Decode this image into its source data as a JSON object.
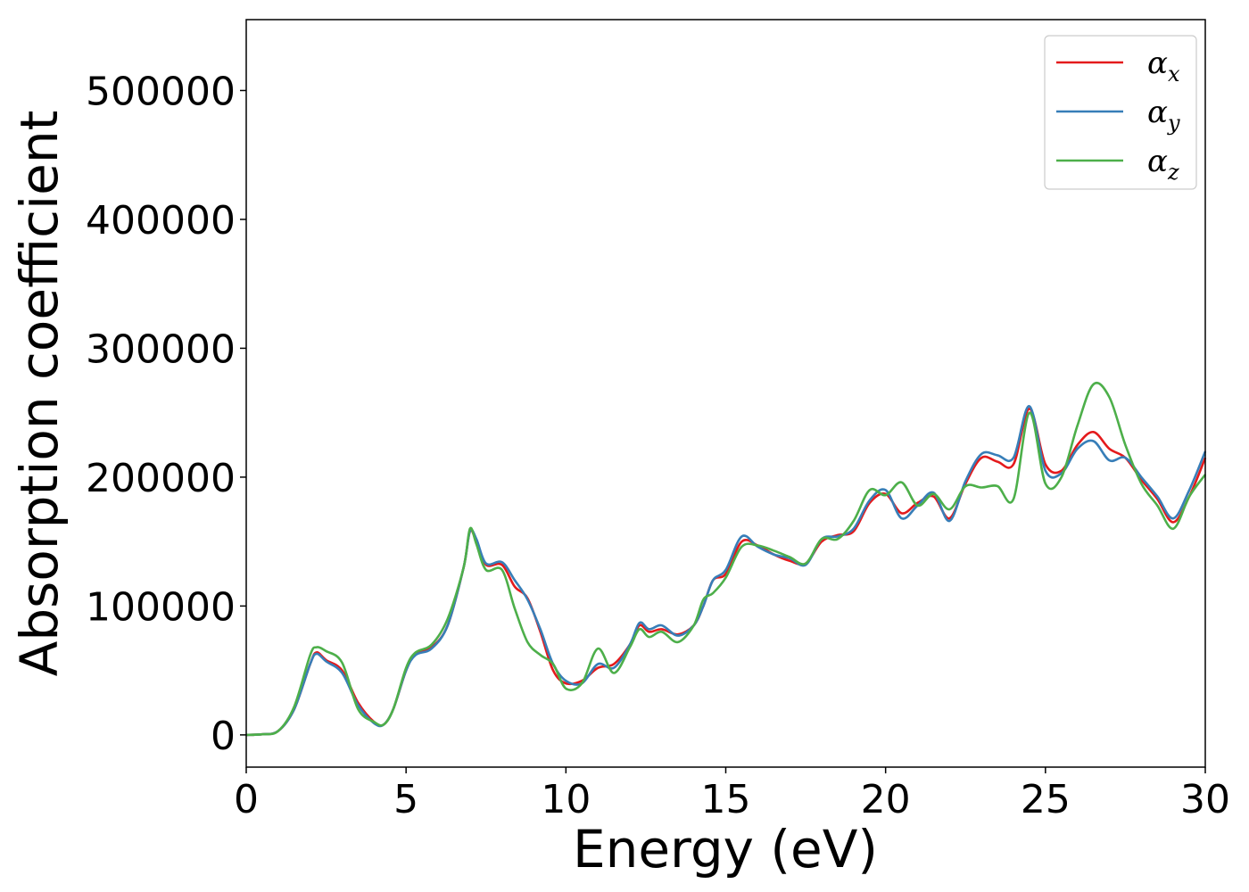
{
  "chart_data": {
    "type": "line",
    "xlabel": "Energy (eV)",
    "ylabel": "Absorption coefficient",
    "xlim": [
      0,
      30
    ],
    "ylim": [
      -25000,
      555000
    ],
    "xticks": [
      0,
      5,
      10,
      15,
      20,
      25,
      30
    ],
    "yticks": [
      0,
      100000,
      200000,
      300000,
      400000,
      500000
    ],
    "grid": false,
    "legend_position": "top-right",
    "series": [
      {
        "name": "α",
        "subscript": "x",
        "color": "#e41a1c",
        "points": [
          [
            0,
            0
          ],
          [
            0.5,
            500
          ],
          [
            1,
            3000
          ],
          [
            1.5,
            20000
          ],
          [
            2,
            55000
          ],
          [
            2.2,
            64000
          ],
          [
            2.5,
            58000
          ],
          [
            3,
            50000
          ],
          [
            3.5,
            25000
          ],
          [
            4,
            10000
          ],
          [
            4.3,
            8000
          ],
          [
            4.6,
            20000
          ],
          [
            5,
            50000
          ],
          [
            5.3,
            63000
          ],
          [
            5.8,
            68000
          ],
          [
            6.3,
            85000
          ],
          [
            6.8,
            130000
          ],
          [
            7,
            158000
          ],
          [
            7.2,
            150000
          ],
          [
            7.5,
            132000
          ],
          [
            8,
            132000
          ],
          [
            8.4,
            115000
          ],
          [
            8.8,
            106000
          ],
          [
            9.2,
            80000
          ],
          [
            9.6,
            50000
          ],
          [
            10,
            40000
          ],
          [
            10.5,
            42000
          ],
          [
            11,
            52000
          ],
          [
            11.5,
            55000
          ],
          [
            12,
            70000
          ],
          [
            12.3,
            85000
          ],
          [
            12.6,
            80000
          ],
          [
            13,
            82000
          ],
          [
            13.5,
            78000
          ],
          [
            14,
            85000
          ],
          [
            14.3,
            100000
          ],
          [
            14.6,
            120000
          ],
          [
            15,
            125000
          ],
          [
            15.5,
            150000
          ],
          [
            16,
            147000
          ],
          [
            16.5,
            140000
          ],
          [
            17,
            135000
          ],
          [
            17.5,
            133000
          ],
          [
            18,
            150000
          ],
          [
            18.5,
            155000
          ],
          [
            19,
            158000
          ],
          [
            19.5,
            180000
          ],
          [
            20,
            187000
          ],
          [
            20.5,
            172000
          ],
          [
            21,
            180000
          ],
          [
            21.5,
            185000
          ],
          [
            22,
            168000
          ],
          [
            22.5,
            195000
          ],
          [
            23,
            215000
          ],
          [
            23.5,
            212000
          ],
          [
            24,
            210000
          ],
          [
            24.5,
            253000
          ],
          [
            25,
            210000
          ],
          [
            25.5,
            205000
          ],
          [
            26,
            225000
          ],
          [
            26.5,
            235000
          ],
          [
            27,
            222000
          ],
          [
            27.5,
            215000
          ],
          [
            28,
            198000
          ],
          [
            28.5,
            183000
          ],
          [
            29,
            165000
          ],
          [
            29.5,
            185000
          ],
          [
            30,
            215000
          ]
        ]
      },
      {
        "name": "α",
        "subscript": "y",
        "color": "#377eb8",
        "points": [
          [
            0,
            0
          ],
          [
            0.5,
            500
          ],
          [
            1,
            3000
          ],
          [
            1.5,
            20000
          ],
          [
            2,
            55000
          ],
          [
            2.2,
            63000
          ],
          [
            2.5,
            57000
          ],
          [
            3,
            48000
          ],
          [
            3.5,
            23000
          ],
          [
            4,
            9000
          ],
          [
            4.3,
            8000
          ],
          [
            4.6,
            20000
          ],
          [
            5,
            50000
          ],
          [
            5.3,
            62000
          ],
          [
            5.8,
            67000
          ],
          [
            6.3,
            85000
          ],
          [
            6.8,
            130000
          ],
          [
            7,
            158000
          ],
          [
            7.2,
            152000
          ],
          [
            7.5,
            133000
          ],
          [
            8,
            134000
          ],
          [
            8.4,
            120000
          ],
          [
            8.8,
            105000
          ],
          [
            9.2,
            82000
          ],
          [
            9.6,
            55000
          ],
          [
            10,
            42000
          ],
          [
            10.5,
            40000
          ],
          [
            11,
            55000
          ],
          [
            11.5,
            52000
          ],
          [
            12,
            70000
          ],
          [
            12.3,
            87000
          ],
          [
            12.6,
            82000
          ],
          [
            13,
            85000
          ],
          [
            13.5,
            77000
          ],
          [
            14,
            85000
          ],
          [
            14.3,
            100000
          ],
          [
            14.6,
            120000
          ],
          [
            15,
            128000
          ],
          [
            15.5,
            154000
          ],
          [
            16,
            146000
          ],
          [
            16.5,
            140000
          ],
          [
            17,
            137000
          ],
          [
            17.5,
            132000
          ],
          [
            18,
            152000
          ],
          [
            18.5,
            154000
          ],
          [
            19,
            160000
          ],
          [
            19.5,
            182000
          ],
          [
            20,
            190000
          ],
          [
            20.5,
            168000
          ],
          [
            21,
            178000
          ],
          [
            21.5,
            188000
          ],
          [
            22,
            166000
          ],
          [
            22.5,
            197000
          ],
          [
            23,
            218000
          ],
          [
            23.5,
            217000
          ],
          [
            24,
            215000
          ],
          [
            24.5,
            255000
          ],
          [
            25,
            205000
          ],
          [
            25.5,
            203000
          ],
          [
            26,
            222000
          ],
          [
            26.5,
            228000
          ],
          [
            27,
            213000
          ],
          [
            27.5,
            215000
          ],
          [
            28,
            200000
          ],
          [
            28.5,
            185000
          ],
          [
            29,
            168000
          ],
          [
            29.5,
            190000
          ],
          [
            30,
            220000
          ]
        ]
      },
      {
        "name": "α",
        "subscript": "z",
        "color": "#4daf4a",
        "points": [
          [
            0,
            0
          ],
          [
            0.5,
            500
          ],
          [
            1,
            3000
          ],
          [
            1.5,
            22000
          ],
          [
            2,
            62000
          ],
          [
            2.2,
            68000
          ],
          [
            2.5,
            65000
          ],
          [
            3,
            56000
          ],
          [
            3.5,
            20000
          ],
          [
            4,
            10000
          ],
          [
            4.3,
            8000
          ],
          [
            4.6,
            20000
          ],
          [
            5,
            52000
          ],
          [
            5.3,
            64000
          ],
          [
            5.8,
            70000
          ],
          [
            6.3,
            90000
          ],
          [
            6.8,
            130000
          ],
          [
            7,
            160000
          ],
          [
            7.2,
            148000
          ],
          [
            7.5,
            128000
          ],
          [
            8,
            128000
          ],
          [
            8.4,
            98000
          ],
          [
            8.8,
            72000
          ],
          [
            9.2,
            62000
          ],
          [
            9.6,
            55000
          ],
          [
            10,
            36000
          ],
          [
            10.5,
            40000
          ],
          [
            11,
            67000
          ],
          [
            11.5,
            48000
          ],
          [
            12,
            68000
          ],
          [
            12.3,
            82000
          ],
          [
            12.6,
            76000
          ],
          [
            13,
            80000
          ],
          [
            13.5,
            72000
          ],
          [
            14,
            85000
          ],
          [
            14.3,
            105000
          ],
          [
            14.6,
            110000
          ],
          [
            15,
            122000
          ],
          [
            15.5,
            146000
          ],
          [
            16,
            147000
          ],
          [
            16.5,
            143000
          ],
          [
            17,
            138000
          ],
          [
            17.5,
            133000
          ],
          [
            18,
            152000
          ],
          [
            18.5,
            152000
          ],
          [
            19,
            166000
          ],
          [
            19.5,
            190000
          ],
          [
            20,
            186000
          ],
          [
            20.5,
            196000
          ],
          [
            21,
            178000
          ],
          [
            21.5,
            187000
          ],
          [
            22,
            175000
          ],
          [
            22.5,
            193000
          ],
          [
            23,
            192000
          ],
          [
            23.5,
            193000
          ],
          [
            24,
            183000
          ],
          [
            24.5,
            250000
          ],
          [
            25,
            195000
          ],
          [
            25.5,
            200000
          ],
          [
            26,
            240000
          ],
          [
            26.5,
            272000
          ],
          [
            27,
            262000
          ],
          [
            27.5,
            225000
          ],
          [
            28,
            195000
          ],
          [
            28.5,
            178000
          ],
          [
            29,
            160000
          ],
          [
            29.5,
            185000
          ],
          [
            30,
            202000
          ]
        ]
      }
    ]
  }
}
